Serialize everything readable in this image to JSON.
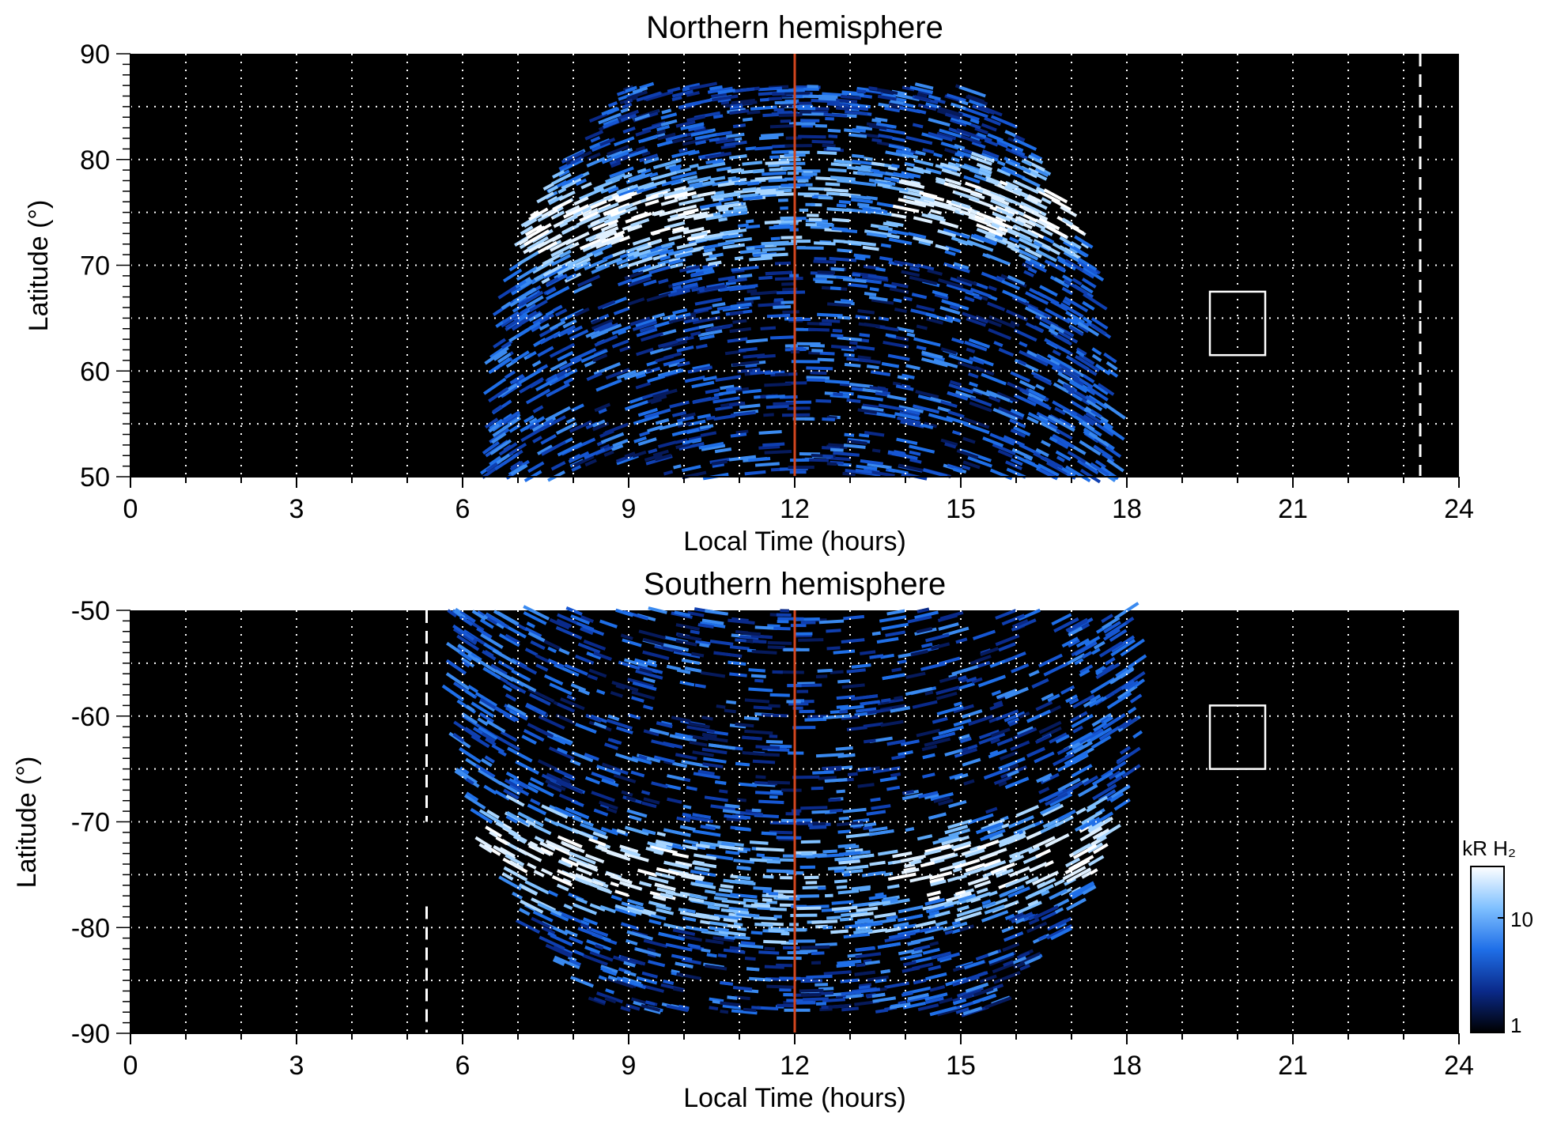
{
  "chart_data": [
    {
      "type": "heatmap",
      "title": "Northern hemisphere",
      "xlabel": "Local Time (hours)",
      "ylabel": "Latitude (°)",
      "xlim": [
        0,
        24
      ],
      "ylim": [
        50,
        90
      ],
      "x_ticks": [
        "0",
        "3",
        "6",
        "9",
        "12",
        "15",
        "18",
        "21",
        "24"
      ],
      "y_ticks": [
        "50",
        "60",
        "70",
        "80",
        "90"
      ],
      "grid": true,
      "emission_extent": {
        "lt_min": 6.5,
        "lt_max": 17.8,
        "lat_max": 87
      },
      "auroral_oval": {
        "lat_dawn": 73,
        "lat_noon": 76,
        "lat_dusk": 75
      },
      "noon_line_lt": 12,
      "dashed_line_lt": 23.3,
      "box": {
        "lt": [
          19.5,
          20.5
        ],
        "lat": [
          61.5,
          67.5
        ]
      }
    },
    {
      "type": "heatmap",
      "title": "Southern hemisphere",
      "xlabel": "Local Time (hours)",
      "ylabel": "Latitude (°)",
      "xlim": [
        0,
        24
      ],
      "ylim": [
        -90,
        -50
      ],
      "x_ticks": [
        "0",
        "3",
        "6",
        "9",
        "12",
        "15",
        "18",
        "21",
        "24"
      ],
      "y_ticks": [
        "-50",
        "-60",
        "-70",
        "-80",
        "-90"
      ],
      "grid": true,
      "emission_extent": {
        "lt_min": 5.8,
        "lt_max": 18.3,
        "lat_min": -88
      },
      "auroral_oval": {
        "lat_dawn": -72,
        "lat_noon": -77,
        "lat_dusk": -72
      },
      "noon_line_lt": 12,
      "dashed_line_lt": 5.35,
      "box": {
        "lt": [
          19.5,
          20.5
        ],
        "lat": [
          -65,
          -59
        ]
      }
    }
  ],
  "colorbar": {
    "label": "kR H₂",
    "tick_labels": [
      "10",
      "1"
    ],
    "scale": "log",
    "range": [
      1,
      30
    ],
    "colors": [
      "#000000",
      "#0a2a8a",
      "#1f6fe8",
      "#7fc0ff",
      "#ffffff"
    ]
  },
  "colors": {
    "background": "#000000",
    "noon_line": "#d2461e",
    "grid": "#ffffff",
    "emission_low": "#0a2a8a",
    "emission_high": "#ffffff"
  }
}
